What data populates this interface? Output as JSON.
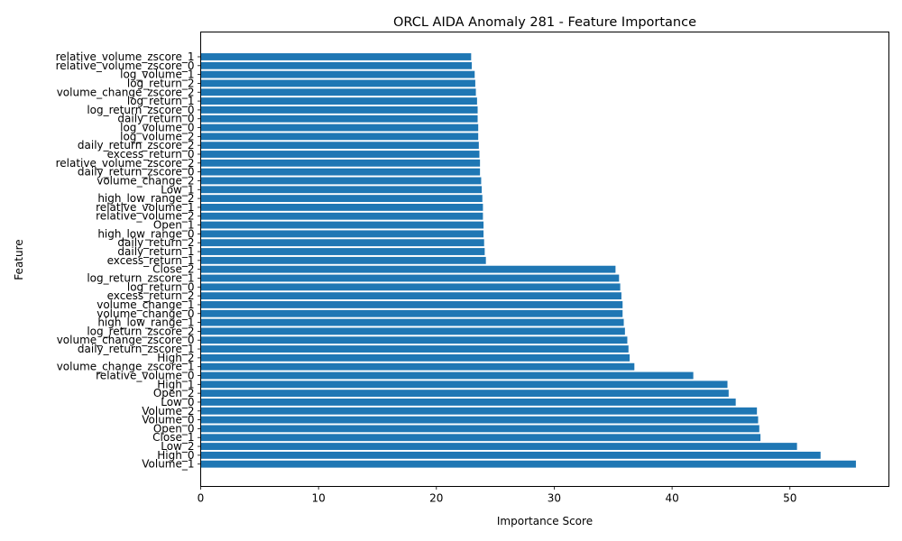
{
  "chart_data": {
    "type": "bar",
    "orientation": "horizontal",
    "title": "ORCL AIDA Anomaly 281 - Feature Importance",
    "xlabel": "Importance Score",
    "ylabel": "Feature",
    "xlim": [
      0,
      58.4
    ],
    "xticks": [
      0,
      10,
      20,
      30,
      40,
      50
    ],
    "bar_color": "#1f77b4",
    "grid": false,
    "categories": [
      "Volume_1",
      "High_0",
      "Low_2",
      "Close_1",
      "Open_0",
      "Volume_0",
      "Volume_2",
      "Low_0",
      "Open_2",
      "High_1",
      "relative_volume_0",
      "volume_change_zscore_1",
      "High_2",
      "daily_return_zscore_1",
      "volume_change_zscore_0",
      "log_return_zscore_2",
      "high_low_range_1",
      "volume_change_0",
      "volume_change_1",
      "excess_return_2",
      "log_return_0",
      "log_return_zscore_1",
      "Close_2",
      "excess_return_1",
      "daily_return_1",
      "daily_return_2",
      "high_low_range_0",
      "Open_1",
      "relative_volume_2",
      "relative_volume_1",
      "high_low_range_2",
      "Low_1",
      "volume_change_2",
      "daily_return_zscore_0",
      "relative_volume_zscore_2",
      "excess_return_0",
      "daily_return_zscore_2",
      "log_volume_2",
      "log_volume_0",
      "daily_return_0",
      "log_return_zscore_0",
      "log_return_1",
      "volume_change_zscore_2",
      "log_return_2",
      "log_volume_1",
      "relative_volume_zscore_0",
      "relative_volume_zscore_1"
    ],
    "values": [
      55.6,
      52.6,
      50.6,
      47.5,
      47.4,
      47.3,
      47.2,
      45.4,
      44.8,
      44.7,
      41.8,
      36.8,
      36.4,
      36.3,
      36.2,
      36.0,
      35.9,
      35.8,
      35.8,
      35.7,
      35.6,
      35.5,
      35.2,
      24.2,
      24.1,
      24.05,
      24.0,
      24.0,
      23.95,
      23.95,
      23.9,
      23.85,
      23.8,
      23.7,
      23.7,
      23.65,
      23.6,
      23.55,
      23.55,
      23.5,
      23.5,
      23.45,
      23.35,
      23.3,
      23.25,
      23.0,
      22.95
    ]
  }
}
